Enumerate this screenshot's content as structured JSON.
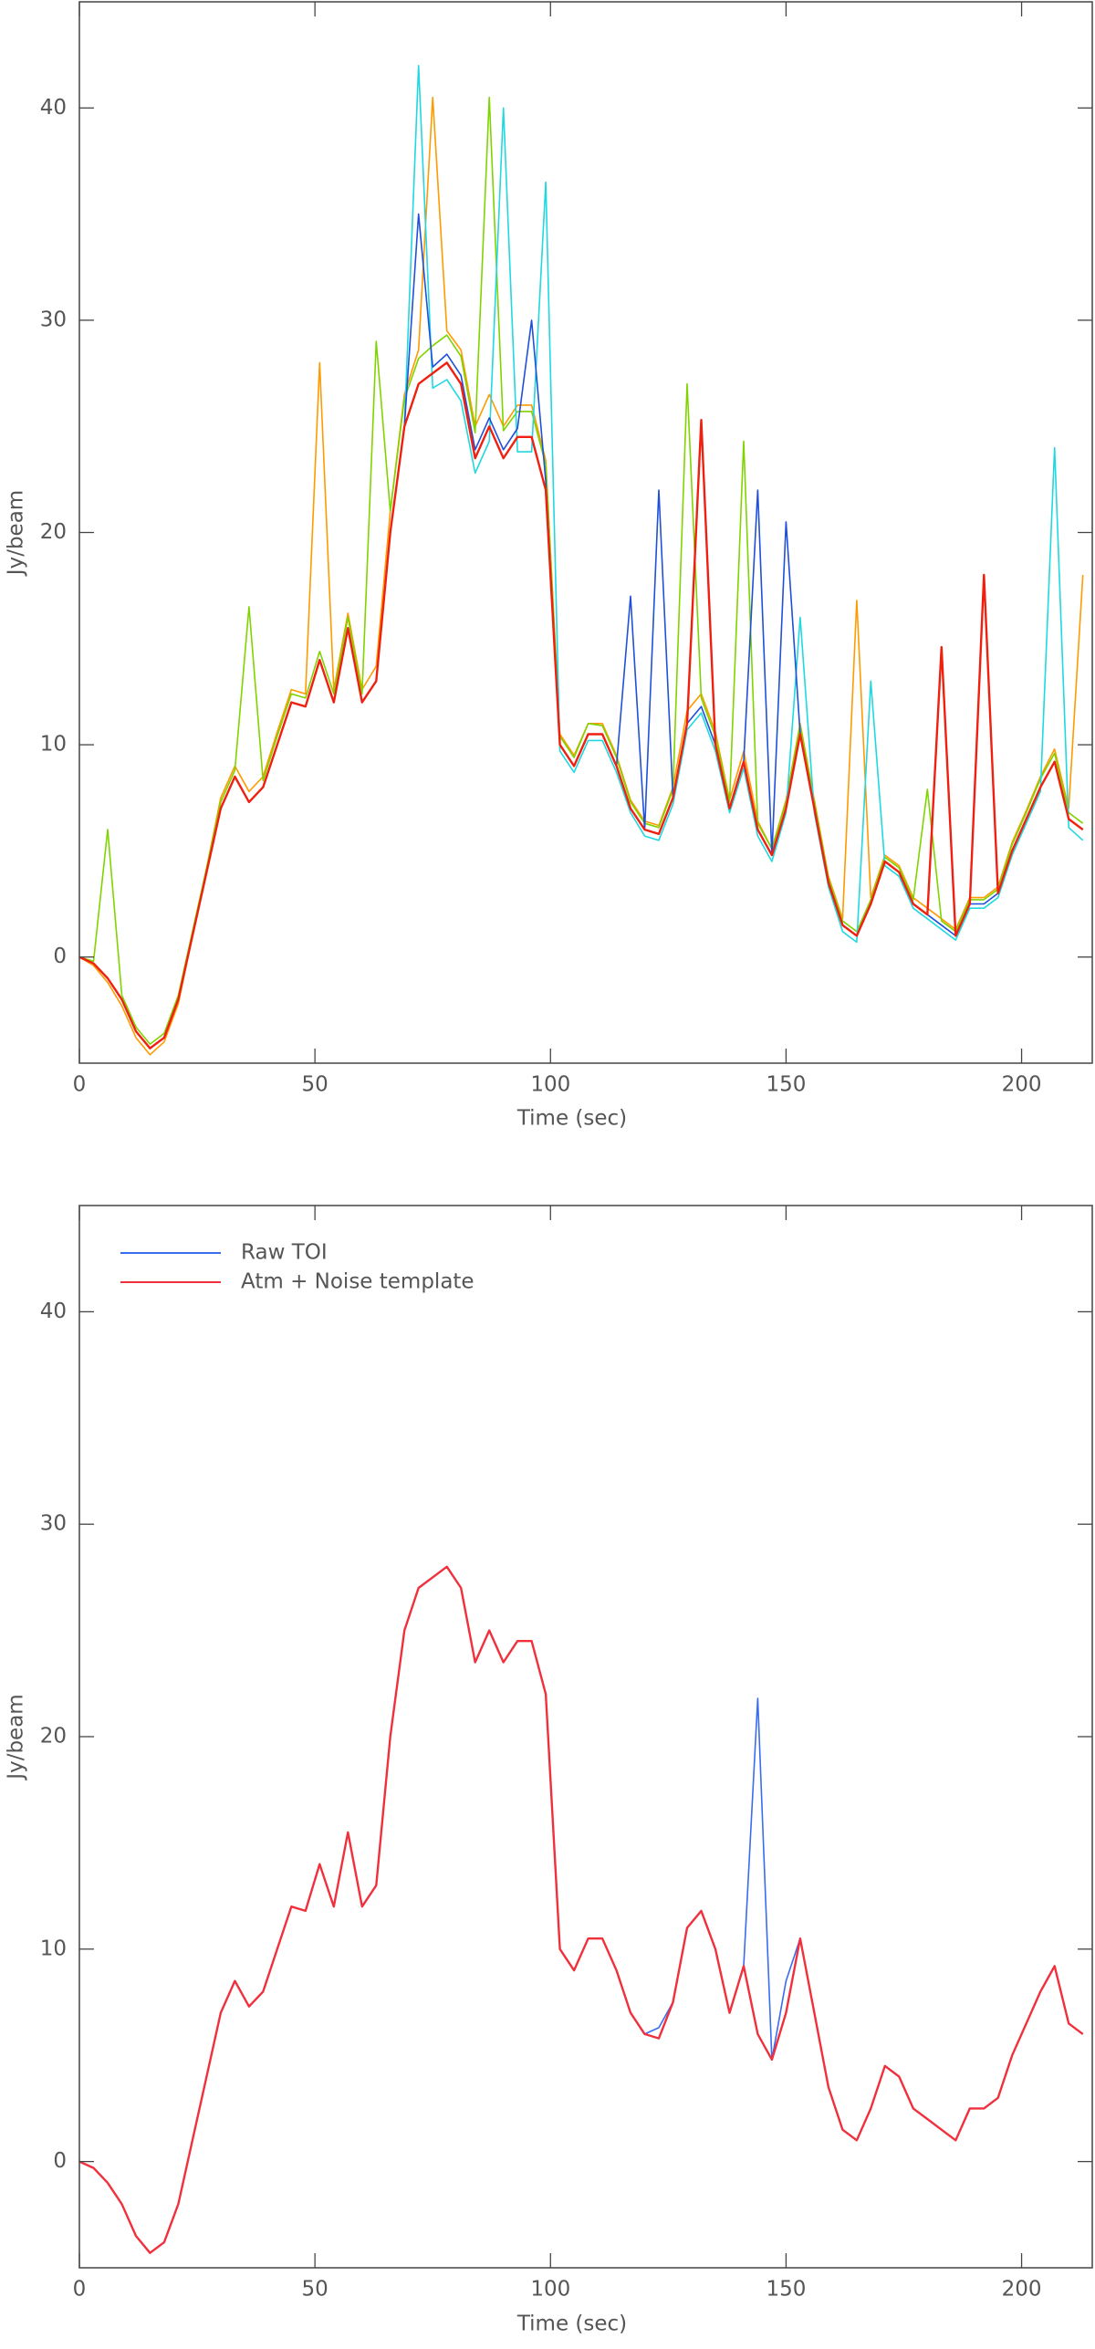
{
  "chart_data": [
    {
      "type": "line",
      "x_label": "Time (sec)",
      "y_label": "Jy/beam",
      "xlim": [
        0,
        215
      ],
      "ylim": [
        -5,
        45
      ],
      "xticks": [
        0,
        50,
        100,
        150,
        200
      ],
      "yticks": [
        0,
        10,
        20,
        30,
        40
      ],
      "x": [
        0,
        3,
        6,
        9,
        12,
        15,
        18,
        21,
        24,
        27,
        30,
        33,
        36,
        39,
        42,
        45,
        48,
        51,
        54,
        57,
        60,
        63,
        66,
        69,
        72,
        75,
        78,
        81,
        84,
        87,
        90,
        93,
        96,
        99,
        102,
        105,
        108,
        111,
        114,
        117,
        120,
        123,
        126,
        129,
        132,
        135,
        138,
        141,
        144,
        147,
        150,
        153,
        156,
        159,
        162,
        165,
        168,
        171,
        174,
        177,
        180,
        183,
        186,
        189,
        192,
        195,
        198,
        201,
        204,
        207,
        210,
        213
      ],
      "series": [
        {
          "color": "#ff9a00",
          "values": [
            0,
            -0.4,
            -1.2,
            -2.3,
            -3.8,
            -4.6,
            -4,
            -2.2,
            1,
            4.2,
            7.5,
            9,
            7.8,
            8.5,
            10.6,
            12.6,
            12.4,
            28,
            12.6,
            16.2,
            12.6,
            13.7,
            21,
            26.5,
            28.6,
            40.5,
            29.5,
            28.6,
            25,
            26.5,
            25,
            26,
            26,
            23.4,
            10.5,
            9.5,
            11,
            11,
            9.5,
            7.4,
            6.4,
            6.2,
            8,
            11.6,
            12.4,
            10.6,
            7.4,
            9.7,
            6.4,
            5.1,
            7.4,
            11,
            7.4,
            3.8,
            1.8,
            16.8,
            2.8,
            4.8,
            4.3,
            2.8,
            2.3,
            1.8,
            1.3,
            2.8,
            2.8,
            3.3,
            5.4,
            6.9,
            8.5,
            9.8,
            7,
            18
          ]
        },
        {
          "color": "#7fd400",
          "values": [
            0,
            -0.2,
            6,
            -1.8,
            -3.3,
            -4.1,
            -3.6,
            -1.8,
            1.2,
            4.2,
            7.3,
            8.8,
            16.5,
            8.3,
            10.4,
            12.4,
            12.2,
            14.4,
            12.4,
            16,
            12.4,
            29,
            21,
            26.3,
            28.2,
            28.8,
            29.3,
            28.3,
            24.7,
            40.5,
            24.8,
            25.7,
            25.7,
            23.2,
            10.4,
            9.4,
            11,
            10.9,
            9.4,
            7.3,
            6.3,
            6.1,
            7.9,
            27,
            12.2,
            10.4,
            7.3,
            24.3,
            6.3,
            5.1,
            7.3,
            10.9,
            7.3,
            3.7,
            1.7,
            1.2,
            2.7,
            4.7,
            4.2,
            2.7,
            7.9,
            1.7,
            1.2,
            2.7,
            2.7,
            3.2,
            5.3,
            6.8,
            8.4,
            9.6,
            6.8,
            6.3
          ]
        },
        {
          "color": "#20d8e0",
          "values": [
            0,
            -0.3,
            -1,
            -2,
            -3.5,
            -4.3,
            -3.8,
            -2,
            1,
            4,
            7,
            8.5,
            7.3,
            8,
            10,
            12,
            11.8,
            14,
            12,
            15.5,
            12,
            13,
            20,
            25,
            42,
            26.8,
            27.2,
            26.2,
            22.8,
            24.3,
            40,
            23.8,
            23.8,
            36.5,
            9.7,
            8.7,
            10.2,
            10.2,
            8.7,
            6.8,
            5.7,
            5.5,
            7.2,
            10.7,
            11.5,
            9.7,
            6.8,
            8.9,
            5.7,
            4.5,
            6.8,
            16,
            6.8,
            3.3,
            1.2,
            0.7,
            13,
            4.3,
            3.8,
            2.3,
            1.8,
            1.3,
            0.8,
            2.3,
            2.3,
            2.8,
            4.8,
            6.3,
            7.8,
            24,
            6.1,
            5.5
          ]
        },
        {
          "color": "#2050d8",
          "values": [
            0,
            -0.3,
            -1,
            -2,
            -3.5,
            -4.3,
            -3.8,
            -2,
            1,
            4,
            7,
            8.5,
            7.3,
            8,
            10,
            12,
            11.8,
            14,
            12,
            15.5,
            12,
            13,
            20,
            25,
            35,
            27.8,
            28.4,
            27.4,
            23.9,
            25.4,
            23.9,
            24.9,
            30,
            22.4,
            10,
            9,
            10.5,
            10.5,
            9,
            17,
            6,
            22,
            7.5,
            11,
            11.8,
            10,
            7,
            9.2,
            22,
            4.8,
            20.5,
            10.5,
            7,
            3.5,
            1.5,
            1,
            2.5,
            4.5,
            4,
            2.5,
            2,
            1.5,
            1,
            2.5,
            2.5,
            3,
            5,
            6.5,
            8,
            9.2,
            6.5,
            6
          ]
        },
        {
          "color": "#f02010",
          "values": [
            0,
            -0.3,
            -1,
            -2,
            -3.5,
            -4.3,
            -3.8,
            -2,
            1,
            4,
            7,
            8.5,
            7.3,
            8,
            10,
            12,
            11.8,
            14,
            12,
            15.5,
            12,
            13,
            20,
            25,
            27,
            27.5,
            28,
            27,
            23.5,
            25,
            23.5,
            24.5,
            24.5,
            22,
            10,
            9,
            10.5,
            10.5,
            9,
            7,
            6,
            5.8,
            7.5,
            11,
            25.3,
            10,
            7,
            9.2,
            6,
            4.8,
            7,
            10.5,
            7,
            3.5,
            1.5,
            1,
            2.5,
            4.5,
            4,
            2.5,
            2,
            14.6,
            1,
            2.5,
            18,
            3,
            5,
            6.5,
            8,
            9.2,
            6.5,
            6
          ]
        }
      ]
    },
    {
      "type": "line",
      "x_label": "Time (sec)",
      "y_label": "Jy/beam",
      "legend": "upper left",
      "xlim": [
        0,
        215
      ],
      "ylim": [
        -5,
        45
      ],
      "xticks": [
        0,
        50,
        100,
        150,
        200
      ],
      "yticks": [
        0,
        10,
        20,
        30,
        40
      ],
      "x": [
        0,
        3,
        6,
        9,
        12,
        15,
        18,
        21,
        24,
        27,
        30,
        33,
        36,
        39,
        42,
        45,
        48,
        51,
        54,
        57,
        60,
        63,
        66,
        69,
        72,
        75,
        78,
        81,
        84,
        87,
        90,
        93,
        96,
        99,
        102,
        105,
        108,
        111,
        114,
        117,
        120,
        123,
        126,
        129,
        132,
        135,
        138,
        141,
        144,
        147,
        150,
        153,
        156,
        159,
        162,
        165,
        168,
        171,
        174,
        177,
        180,
        183,
        186,
        189,
        192,
        195,
        198,
        201,
        204,
        207,
        210,
        213
      ],
      "series": [
        {
          "name": "Raw TOI",
          "color": "#3a6cf0",
          "values": [
            0,
            -0.3,
            -1,
            -2,
            -3.5,
            -4.3,
            -3.8,
            -2,
            1,
            4,
            7,
            8.5,
            7.3,
            8,
            10,
            12,
            11.8,
            14,
            12,
            15.5,
            12,
            13,
            20,
            25,
            27,
            27.5,
            28,
            27,
            23.5,
            25,
            23.5,
            24.5,
            24.5,
            22,
            10,
            9,
            10.5,
            10.5,
            9,
            7,
            6,
            6.3,
            7.5,
            11,
            11.8,
            10,
            7,
            9.2,
            21.8,
            4.8,
            8.5,
            10.5,
            7,
            3.5,
            1.5,
            1,
            2.5,
            4.5,
            4,
            2.5,
            2,
            1.5,
            1,
            2.5,
            2.5,
            3,
            5,
            6.5,
            8,
            9.2,
            6.5,
            6
          ]
        },
        {
          "name": "Atm + Noise template",
          "color": "#f0303c",
          "values": [
            0,
            -0.3,
            -1,
            -2,
            -3.5,
            -4.3,
            -3.8,
            -2,
            1,
            4,
            7,
            8.5,
            7.3,
            8,
            10,
            12,
            11.8,
            14,
            12,
            15.5,
            12,
            13,
            20,
            25,
            27,
            27.5,
            28,
            27,
            23.5,
            25,
            23.5,
            24.5,
            24.5,
            22,
            10,
            9,
            10.5,
            10.5,
            9,
            7,
            6,
            5.8,
            7.5,
            11,
            11.8,
            10,
            7,
            9.2,
            6,
            4.8,
            7,
            10.5,
            7,
            3.5,
            1.5,
            1,
            2.5,
            4.5,
            4,
            2.5,
            2,
            1.5,
            1,
            2.5,
            2.5,
            3,
            5,
            6.5,
            8,
            9.2,
            6.5,
            6
          ]
        }
      ]
    }
  ]
}
